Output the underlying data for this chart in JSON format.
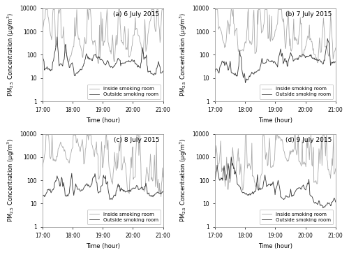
{
  "titles": [
    "(a) 6 July 2015",
    "(b) 7 July 2015",
    "(c) 8 July 2015",
    "(d) 9 July 2015"
  ],
  "xlabel": "Time (hour)",
  "ylabel": "PM$_{2.5}$ Concentration (μg/m$^3$)",
  "ylim": [
    1,
    10000
  ],
  "yticks": [
    1,
    10,
    100,
    1000,
    10000
  ],
  "ytick_labels": [
    "1",
    "10",
    "100",
    "1000",
    "10000"
  ],
  "xtick_positions": [
    17,
    18,
    19,
    20,
    21
  ],
  "xtick_labels": [
    "17:00",
    "18:00",
    "19:00",
    "20:00",
    "21:00"
  ],
  "color_inside": "#aaaaaa",
  "color_outside": "#333333",
  "legend_inside": "Inside smoking room",
  "legend_outside": "Outside smoking room",
  "n_points": 240,
  "time_start": 17.0,
  "time_end": 21.0,
  "background_color": "#ffffff",
  "linewidth_inside": 0.6,
  "linewidth_outside": 0.6,
  "legend_fontsize": 5.0,
  "tick_fontsize": 5.5,
  "label_fontsize": 6.0,
  "title_fontsize": 6.5
}
